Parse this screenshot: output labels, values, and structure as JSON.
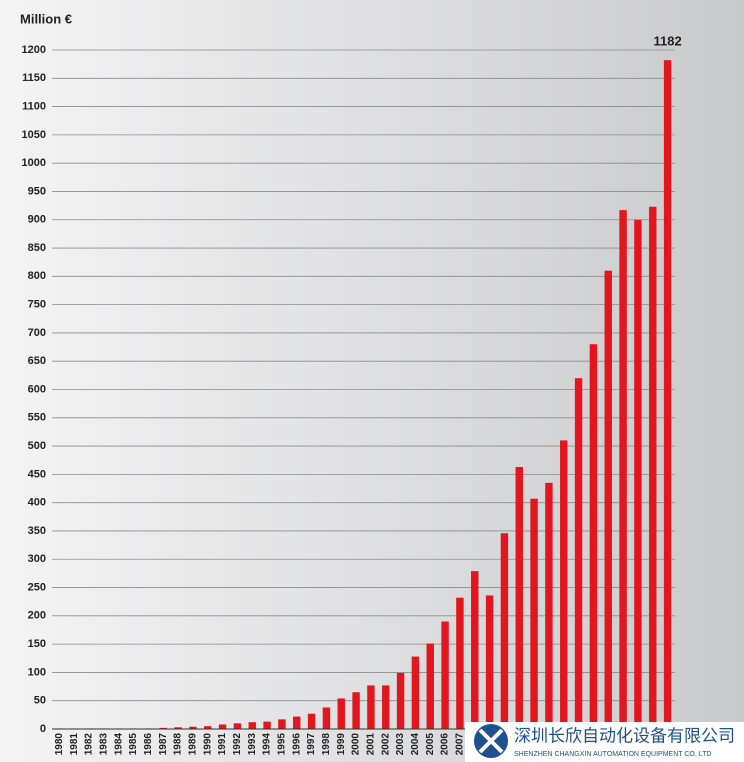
{
  "chart_data": {
    "type": "bar",
    "ylabel": "Million €",
    "categories": [
      "1980",
      "1981",
      "1982",
      "1983",
      "1984",
      "1985",
      "1986",
      "1987",
      "1988",
      "1989",
      "1990",
      "1991",
      "1992",
      "1993",
      "1994",
      "1995",
      "1996",
      "1997",
      "1998",
      "1999",
      "2000",
      "2001",
      "2002",
      "2003",
      "2004",
      "2005",
      "2006",
      "2007",
      null,
      null,
      null,
      null,
      null,
      null,
      null,
      null,
      null,
      null,
      null,
      null,
      null,
      null
    ],
    "values": [
      1,
      1,
      1,
      1,
      1,
      1,
      1,
      2,
      3,
      4,
      5,
      8,
      10,
      12,
      13,
      17,
      22,
      27,
      38,
      54,
      65,
      77,
      77,
      99,
      128,
      151,
      190,
      232,
      279,
      236,
      346,
      463,
      407,
      435,
      510,
      620,
      680,
      810,
      917,
      900,
      923,
      1182
    ],
    "color": "#e3151d",
    "data_labels": "last",
    "ylim": [
      0,
      1200
    ],
    "yticks": [
      0,
      50,
      100,
      150,
      200,
      250,
      300,
      350,
      400,
      450,
      500,
      550,
      600,
      650,
      700,
      750,
      800,
      850,
      900,
      950,
      1000,
      1050,
      1100,
      1150,
      1200
    ],
    "grid": true
  },
  "watermark": {
    "name": "深圳长欣自动化设备有限公司",
    "subtitle": "SHENZHEN CHANGXIN AUTOMATION EQUIPMENT CO. LTD"
  }
}
